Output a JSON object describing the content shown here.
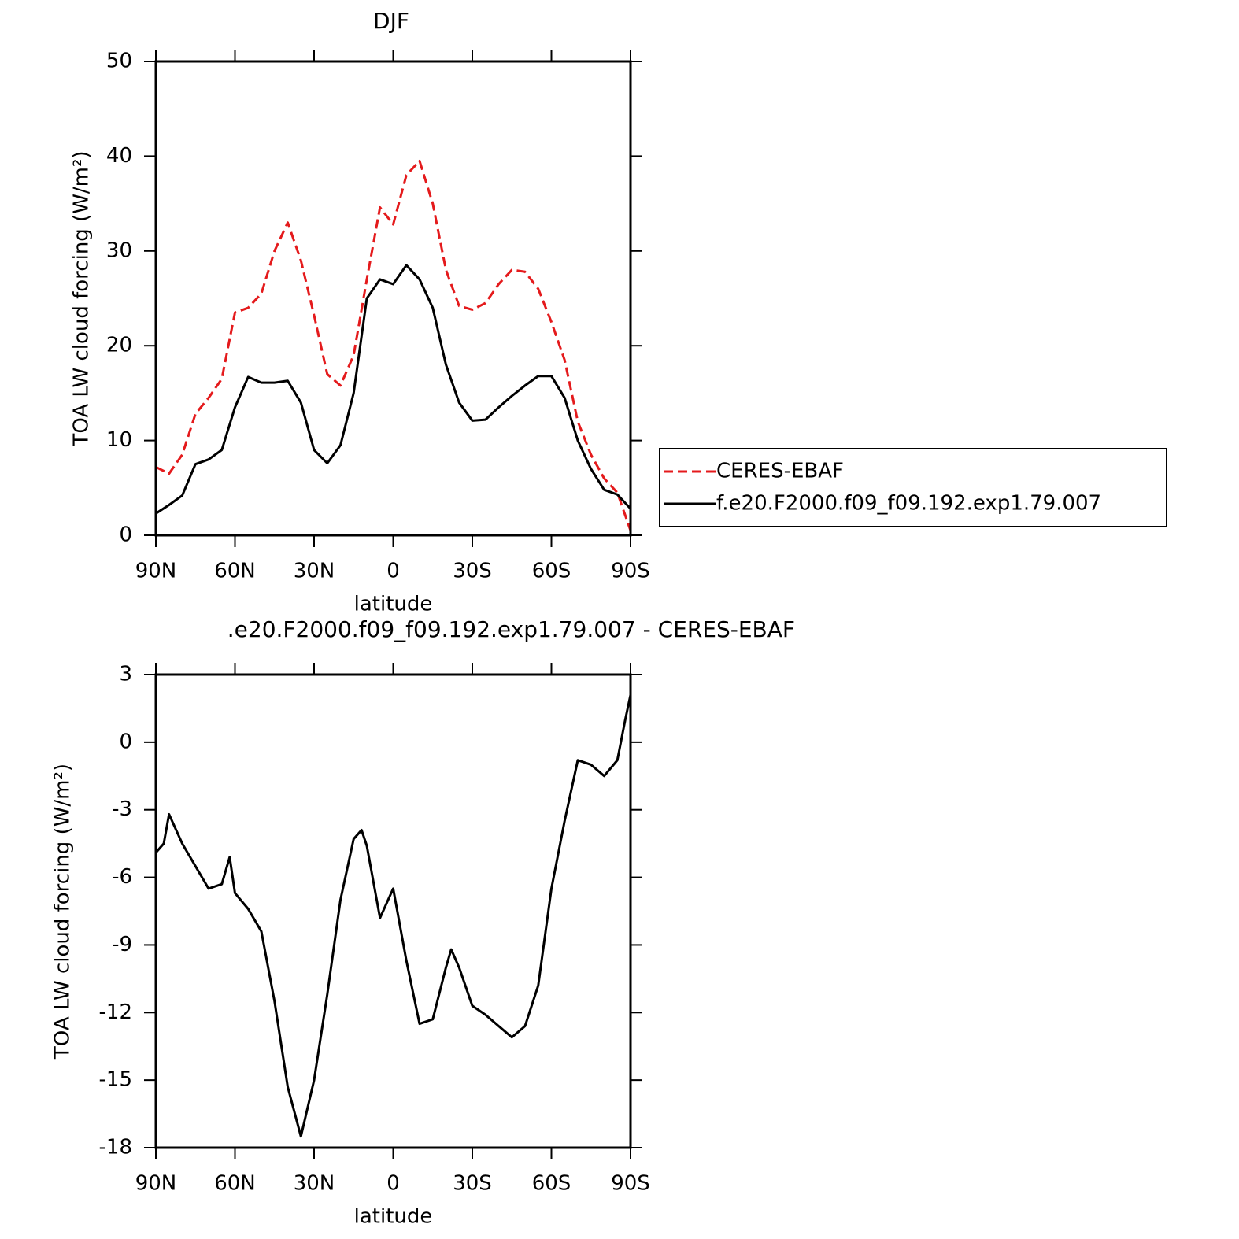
{
  "chart_data": [
    {
      "type": "line",
      "title": "DJF",
      "xlabel": "latitude",
      "ylabel": "TOA LW cloud forcing (W/m²)",
      "x": [
        90,
        85,
        80,
        75,
        70,
        65,
        60,
        55,
        50,
        45,
        40,
        35,
        30,
        25,
        20,
        15,
        10,
        5,
        0,
        -5,
        -10,
        -15,
        -20,
        -25,
        -30,
        -35,
        -40,
        -45,
        -50,
        -55,
        -60,
        -65,
        -70,
        -75,
        -80,
        -85,
        -90
      ],
      "series": [
        {
          "name": "CERES-EBAF",
          "color": "#e41a1c",
          "linestyle": "dashed",
          "values": [
            7.2,
            6.5,
            8.5,
            12.8,
            14.5,
            16.5,
            23.5,
            24,
            25.5,
            30,
            33,
            29,
            23.2,
            17,
            15.8,
            19,
            27,
            34.6,
            32.8,
            38,
            39.5,
            35,
            28,
            24.2,
            23.8,
            24.5,
            26.5,
            28,
            27.8,
            26,
            22.5,
            18.5,
            12,
            8.5,
            6,
            4.5,
            0.5
          ]
        },
        {
          "name": "f.e20.F2000.f09_f09.192.exp1.79.007",
          "color": "#000000",
          "linestyle": "solid",
          "values": [
            2.3,
            3.2,
            4.2,
            7.5,
            8,
            9,
            13.5,
            16.7,
            16.1,
            16.1,
            16.3,
            14,
            9,
            7.6,
            9.5,
            15,
            25,
            27,
            26.5,
            28.5,
            27,
            24,
            18,
            14,
            12.1,
            12.2,
            13.5,
            14.7,
            15.8,
            16.8,
            16.8,
            14.5,
            10,
            7,
            4.8,
            4.3,
            2.8
          ]
        }
      ],
      "xlim": [
        90,
        -90
      ],
      "xticks": [
        {
          "value": 90,
          "label": "90N"
        },
        {
          "value": 60,
          "label": "60N"
        },
        {
          "value": 30,
          "label": "30N"
        },
        0,
        {
          "value": -30,
          "label": "30S"
        },
        {
          "value": -60,
          "label": "60S"
        },
        {
          "value": -90,
          "label": "90S"
        }
      ],
      "ylim": [
        0,
        50
      ],
      "yticks": [
        0,
        10,
        20,
        30,
        40,
        50
      ],
      "legend": "right"
    },
    {
      "type": "line",
      "title": ".e20.F2000.f09_f09.192.exp1.79.007 - CERES-EBAF",
      "xlabel": "latitude",
      "ylabel": "TOA LW cloud forcing (W/m²)",
      "x": [
        90,
        87,
        85,
        80,
        75,
        70,
        65,
        62,
        60,
        55,
        50,
        45,
        40,
        35,
        30,
        25,
        20,
        15,
        12,
        10,
        5,
        0,
        -5,
        -10,
        -15,
        -20,
        -22,
        -25,
        -30,
        -35,
        -40,
        -45,
        -50,
        -55,
        -60,
        -65,
        -70,
        -75,
        -80,
        -85,
        -88,
        -90
      ],
      "series": [
        {
          "color": "#000000",
          "linestyle": "solid",
          "values": [
            -4.9,
            -4.5,
            -3.2,
            -4.5,
            -5.5,
            -6.5,
            -6.3,
            -5.1,
            -6.7,
            -7.4,
            -8.4,
            -11.5,
            -15.3,
            -17.5,
            -15,
            -11.2,
            -7,
            -4.3,
            -3.9,
            -4.6,
            -7.8,
            -6.5,
            -9.7,
            -12.5,
            -12.3,
            -10,
            -9.2,
            -10,
            -11.7,
            -12.1,
            -12.6,
            -13.1,
            -12.6,
            -10.8,
            -6.5,
            -3.5,
            -0.8,
            -1,
            -1.5,
            -0.8,
            1,
            2.1
          ]
        }
      ],
      "xlim": [
        90,
        -90
      ],
      "xticks": [
        {
          "value": 90,
          "label": "90N"
        },
        {
          "value": 60,
          "label": "60N"
        },
        {
          "value": 30,
          "label": "30N"
        },
        0,
        {
          "value": -30,
          "label": "30S"
        },
        {
          "value": -60,
          "label": "60S"
        },
        {
          "value": -90,
          "label": "90S"
        }
      ],
      "ylim": [
        -18,
        3
      ],
      "yticks": [
        -18,
        -15,
        -12,
        -9,
        -6,
        -3,
        0,
        3
      ]
    }
  ]
}
